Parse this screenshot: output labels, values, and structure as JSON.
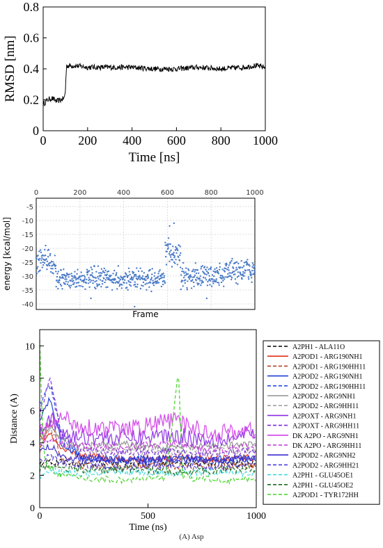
{
  "chart_data": [
    {
      "type": "line",
      "xlabel": "Time [ns]",
      "ylabel": "RMSD [nm]",
      "xlim": [
        0,
        1000
      ],
      "ylim": [
        0,
        0.8
      ],
      "xticks": [
        0,
        200,
        400,
        600,
        800,
        1000
      ],
      "yticks": [
        0,
        0.2,
        0.4,
        0.6,
        0.8
      ],
      "grid": false,
      "series": [
        {
          "color": "#000000",
          "x": [
            0,
            20,
            40,
            60,
            80,
            95,
            100,
            105,
            150,
            200,
            300,
            400,
            500,
            600,
            700,
            800,
            900,
            950,
            1000
          ],
          "values": [
            0.17,
            0.2,
            0.21,
            0.19,
            0.2,
            0.21,
            0.26,
            0.42,
            0.42,
            0.41,
            0.41,
            0.41,
            0.4,
            0.4,
            0.41,
            0.4,
            0.41,
            0.42,
            0.41
          ]
        }
      ]
    },
    {
      "type": "scatter",
      "xlabel": "Frame",
      "ylabel": "energy [kcal/mol]",
      "xlim": [
        0,
        1000
      ],
      "ylim": [
        -42,
        -2
      ],
      "xticks": [
        0,
        200,
        400,
        600,
        800,
        1000
      ],
      "yticks": [
        -5,
        -10,
        -15,
        -20,
        -25,
        -30,
        -35,
        -40
      ],
      "x_axis_position": "top",
      "grid": true,
      "series": [
        {
          "color": "#4a7bc8",
          "segments": [
            {
              "x": [
                0,
                90
              ],
              "mean": -25,
              "spread": 4
            },
            {
              "x": [
                90,
                590
              ],
              "mean": -31,
              "spread": 3.2
            },
            {
              "x": [
                590,
                660
              ],
              "mean": -22,
              "spread": 4
            },
            {
              "x": [
                660,
                860
              ],
              "mean": -30,
              "spread": 3.5
            },
            {
              "x": [
                860,
                1000
              ],
              "mean": -28,
              "spread": 4
            }
          ],
          "outliers": [
            [
              610,
              -12
            ],
            [
              630,
              -11
            ],
            [
              450,
              -41
            ],
            [
              780,
              -38
            ],
            [
              250,
              -38
            ]
          ]
        }
      ]
    },
    {
      "type": "line",
      "xlabel": "Time (ns)",
      "ylabel": "Distance (A)",
      "xlim": [
        0,
        1000
      ],
      "ylim": [
        0,
        11
      ],
      "xticks": [
        0,
        500,
        1000
      ],
      "yticks": [
        0,
        2,
        4,
        6,
        8,
        10
      ],
      "grid": false,
      "legend_position": "right",
      "series": [
        {
          "name": "A2PH1 - ALA11O",
          "color": "#000000",
          "dash": true,
          "x": [
            0,
            50,
            100,
            200,
            400,
            600,
            800,
            1000
          ],
          "values": [
            2.7,
            2.9,
            2.8,
            2.7,
            2.8,
            2.7,
            2.8,
            2.7
          ]
        },
        {
          "name": "A2POD1 - ARG190NH1",
          "color": "#e0301e",
          "dash": false,
          "x": [
            0,
            50,
            100,
            200,
            400,
            600,
            800,
            1000
          ],
          "values": [
            4.2,
            4.5,
            3.5,
            3.2,
            3.0,
            3.1,
            3.0,
            3.1
          ]
        },
        {
          "name": "A2POD1 - ARG190HH11",
          "color": "#b8401e",
          "dash": true,
          "x": [
            0,
            50,
            100,
            200,
            400,
            600,
            800,
            1000
          ],
          "values": [
            3.5,
            5.5,
            3.0,
            2.6,
            2.5,
            2.6,
            2.5,
            2.6
          ]
        },
        {
          "name": "A2POD2 - ARG190NH1",
          "color": "#1e3cd8",
          "dash": false,
          "x": [
            0,
            50,
            100,
            200,
            400,
            600,
            800,
            1000
          ],
          "values": [
            5.5,
            6.8,
            4.0,
            3.1,
            3.0,
            3.0,
            3.1,
            3.0
          ]
        },
        {
          "name": "A2POD2 - ARG190HH11",
          "color": "#2a4ae0",
          "dash": true,
          "x": [
            0,
            50,
            100,
            200,
            400,
            600,
            800,
            1000
          ],
          "values": [
            6.5,
            7.5,
            4.5,
            3.0,
            2.9,
            3.0,
            2.9,
            3.0
          ]
        },
        {
          "name": "A2POD2 - ARG9NH1",
          "color": "#909090",
          "dash": false,
          "x": [
            0,
            50,
            100,
            200,
            400,
            600,
            800,
            1000
          ],
          "values": [
            4.5,
            5.0,
            4.2,
            3.8,
            3.9,
            3.7,
            3.8,
            3.9
          ]
        },
        {
          "name": "A2POD2 - ARG9HH11",
          "color": "#a0a0a0",
          "dash": true,
          "x": [
            0,
            50,
            100,
            200,
            400,
            600,
            800,
            1000
          ],
          "values": [
            4.0,
            4.8,
            3.9,
            3.5,
            3.6,
            3.4,
            3.5,
            3.6
          ]
        },
        {
          "name": "A2POXT - ARG9NH1",
          "color": "#8a2be2",
          "dash": false,
          "x": [
            0,
            50,
            100,
            200,
            400,
            600,
            800,
            1000
          ],
          "values": [
            5.0,
            5.5,
            4.5,
            4.4,
            4.3,
            4.5,
            4.2,
            4.5
          ]
        },
        {
          "name": "A2POXT - ARG9HH11",
          "color": "#7a2ad8",
          "dash": true,
          "x": [
            0,
            50,
            100,
            200,
            400,
            600,
            800,
            1000
          ],
          "values": [
            5.8,
            8.0,
            4.5,
            3.5,
            3.4,
            3.5,
            3.3,
            3.5
          ]
        },
        {
          "name": "DK A2PO - ARG9NH1",
          "color": "#d040e8",
          "dash": false,
          "x": [
            0,
            50,
            100,
            200,
            400,
            600,
            800,
            1000
          ],
          "values": [
            4.6,
            5.0,
            5.6,
            5.0,
            4.8,
            5.4,
            4.6,
            4.8
          ]
        },
        {
          "name": "DK A2PO - ARG9HH11",
          "color": "#c030d8",
          "dash": true,
          "x": [
            0,
            50,
            100,
            200,
            400,
            600,
            800,
            1000
          ],
          "values": [
            3.8,
            4.2,
            4.0,
            3.8,
            3.7,
            4.0,
            3.6,
            3.8
          ]
        },
        {
          "name": "A2POD2 - ARG9NH2",
          "color": "#3a2ad0",
          "dash": false,
          "x": [
            0,
            50,
            100,
            200,
            400,
            600,
            800,
            1000
          ],
          "values": [
            3.5,
            3.8,
            3.2,
            3.0,
            2.9,
            3.0,
            2.9,
            3.0
          ]
        },
        {
          "name": "A2POD2 - ARG9HH21",
          "color": "#4a3ae0",
          "dash": true,
          "x": [
            0,
            50,
            100,
            200,
            400,
            600,
            800,
            1000
          ],
          "values": [
            3.0,
            3.2,
            2.8,
            2.6,
            2.5,
            2.6,
            2.5,
            2.6
          ]
        },
        {
          "name": "A2PH1 - GLU45OE1",
          "color": "#40d8e0",
          "dash": true,
          "x": [
            0,
            50,
            100,
            200,
            400,
            600,
            800,
            1000
          ],
          "values": [
            2.0,
            2.3,
            2.2,
            2.1,
            2.2,
            2.1,
            2.2,
            2.1
          ]
        },
        {
          "name": "A2PH1 - GLU45OE2",
          "color": "#1a6a1a",
          "dash": true,
          "x": [
            0,
            50,
            100,
            200,
            400,
            600,
            800,
            1000
          ],
          "values": [
            2.4,
            2.6,
            2.5,
            2.3,
            2.4,
            2.2,
            2.3,
            2.4
          ]
        },
        {
          "name": "A2POD1 - TYR172HH",
          "color": "#40d020",
          "dash": true,
          "x": [
            0,
            10,
            20,
            50,
            100,
            200,
            400,
            580,
            620,
            640,
            660,
            700,
            800,
            1000
          ],
          "values": [
            10.5,
            6.0,
            3.0,
            2.5,
            2.0,
            1.8,
            1.7,
            1.8,
            6.0,
            8.5,
            2.0,
            1.8,
            1.7,
            1.7
          ]
        }
      ]
    }
  ],
  "caption": "(A) Asp"
}
